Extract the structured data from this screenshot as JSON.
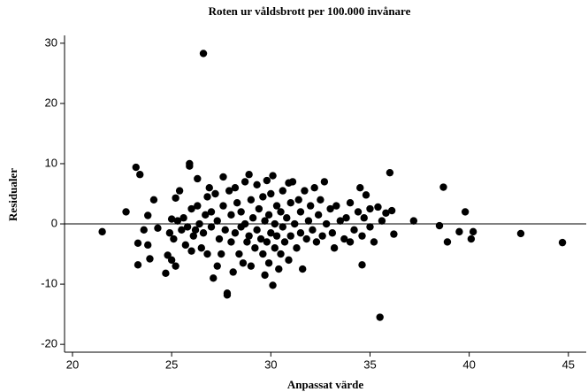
{
  "chart_data": {
    "type": "scatter",
    "title": "Roten ur våldsbrott per 100.000 invånare",
    "x_label": "Anpassat värde",
    "y_label": "Residualer",
    "color": "#000000",
    "hline": 0,
    "xlim": [
      19.6,
      45.9
    ],
    "ylim": [
      -21.3,
      31.3
    ],
    "xticks": [
      20,
      25,
      30,
      35,
      40,
      45
    ],
    "yticks": [
      -20,
      -10,
      0,
      10,
      20,
      30
    ],
    "x": [
      21.5,
      22.7,
      23.2,
      23.3,
      23.3,
      23.4,
      23.6,
      23.8,
      23.8,
      23.9,
      24.1,
      24.3,
      24.7,
      24.8,
      24.9,
      25,
      25,
      25.1,
      25.2,
      25.2,
      25.3,
      25.4,
      25.5,
      25.6,
      25.7,
      25.8,
      25.9,
      25.9,
      26,
      26,
      26.1,
      26.2,
      26.3,
      26.3,
      26.4,
      26.5,
      26.6,
      26.6,
      26.7,
      26.8,
      26.8,
      26.9,
      27,
      27,
      27.1,
      27.2,
      27.3,
      27.3,
      27.4,
      27.5,
      27.6,
      27.6,
      27.7,
      27.8,
      27.8,
      27.9,
      28,
      28,
      28.1,
      28.2,
      28.2,
      28.3,
      28.4,
      28.5,
      28.5,
      28.6,
      28.7,
      28.7,
      28.8,
      28.9,
      28.9,
      29,
      29,
      29.1,
      29.2,
      29.3,
      29.3,
      29.4,
      29.5,
      29.6,
      29.6,
      29.7,
      29.7,
      29.8,
      29.8,
      29.9,
      29.9,
      30,
      30,
      30.1,
      30.1,
      30.2,
      30.2,
      30.3,
      30.3,
      30.4,
      30.5,
      30.5,
      30.6,
      30.6,
      30.7,
      30.8,
      30.9,
      30.9,
      31,
      31,
      31.1,
      31.2,
      31.3,
      31.4,
      31.5,
      31.5,
      31.6,
      31.7,
      31.8,
      31.9,
      32,
      32.1,
      32.2,
      32.3,
      32.4,
      32.5,
      32.6,
      32.7,
      32.8,
      33,
      33.1,
      33.2,
      33.3,
      33.5,
      33.7,
      33.8,
      34,
      34,
      34.2,
      34.4,
      34.5,
      34.6,
      34.6,
      34.7,
      34.8,
      35,
      35,
      35.2,
      35.4,
      35.5,
      35.6,
      35.8,
      36,
      36.1,
      36.2,
      37.2,
      38.5,
      38.7,
      38.9,
      39.5,
      39.8,
      40.1,
      40.2,
      42.6,
      44.7
    ],
    "values": [
      -1.3,
      2,
      9.4,
      -3.2,
      -6.8,
      8.2,
      -1,
      1.4,
      -3.5,
      -5.8,
      4,
      -0.7,
      -8.2,
      -5.2,
      -1.5,
      0.8,
      -6,
      -2.5,
      -7,
      4.3,
      0.5,
      5.5,
      -1,
      1,
      -3.5,
      -0.5,
      9.6,
      10,
      -4.5,
      2.5,
      -2,
      -1,
      7.5,
      3,
      0,
      -4,
      28.3,
      -1.5,
      1.5,
      4.5,
      -5,
      6,
      -0.5,
      2,
      -9,
      5,
      -7,
      0.5,
      -2.5,
      -5,
      7.8,
      3,
      -1,
      -11.8,
      -11.5,
      5.5,
      1.5,
      -3,
      -8,
      6,
      -1.5,
      3.5,
      -5,
      -0.5,
      2,
      -6.5,
      7,
      0,
      -3,
      8.2,
      -2,
      4,
      -7,
      1,
      -4,
      6.5,
      -1,
      2.5,
      -2.5,
      -5,
      4.5,
      -8.5,
      0.5,
      7.2,
      -3,
      -6.5,
      1.5,
      -1.5,
      5,
      -10.2,
      8,
      -4,
      0,
      3,
      -2,
      -7.5,
      2,
      -5,
      5.5,
      -0.5,
      -3,
      1,
      6.8,
      -6,
      3.5,
      -2,
      7,
      0,
      -4,
      4,
      -1.5,
      2,
      -7.5,
      5.5,
      -2.5,
      0.5,
      3,
      -1,
      6,
      -3,
      1.5,
      4,
      -2,
      7,
      0,
      2.5,
      -1.5,
      -4,
      3,
      0.5,
      -2.5,
      1,
      3.5,
      -3,
      -1,
      2,
      6,
      -6.8,
      -2,
      1,
      4.8,
      -0.5,
      2.5,
      -3,
      2.8,
      -15.5,
      0.5,
      1.8,
      8.5,
      2.2,
      -1.7,
      0.5,
      -0.3,
      6.1,
      -3,
      -1.3,
      2,
      -2.5,
      -1.3,
      -1.6,
      -3.1
    ]
  }
}
